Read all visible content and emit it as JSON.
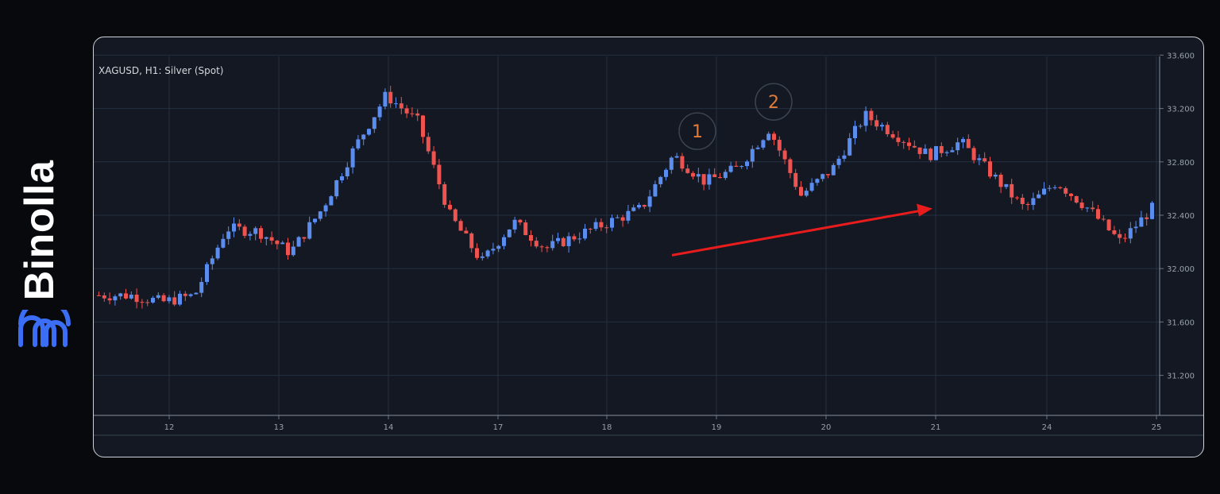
{
  "brand": {
    "name": "Binolla",
    "logo_icon": "binolla-logo-icon"
  },
  "chart_data": {
    "type": "candlestick",
    "title": "XAGUSD, H1: Silver (Spot)",
    "ylim": [
      30.9,
      33.65
    ],
    "y_ticks": [
      "33.600",
      "33.200",
      "32.800",
      "32.400",
      "32.000",
      "31.600",
      "31.200"
    ],
    "x_ticks": [
      "12",
      "13",
      "14",
      "17",
      "18",
      "19",
      "20",
      "21",
      "24",
      "25"
    ],
    "grid": true,
    "colors": {
      "up": "#5b8def",
      "down": "#ef5350",
      "grid": "#253041",
      "annotation": "#e07b39",
      "arrow": "#e81c1c",
      "background": "#131822"
    },
    "annotations": [
      {
        "label": "1",
        "date": "19",
        "price": 33.03
      },
      {
        "label": "2",
        "date": "19",
        "price": 33.25
      }
    ],
    "trend_arrow": {
      "from": {
        "date": "19",
        "price": 32.1
      },
      "to": {
        "date": "21",
        "price": 32.45
      }
    },
    "anchors": [
      {
        "date": "11",
        "price": 31.8
      },
      {
        "date": "12",
        "price": 31.8
      },
      {
        "date": "12",
        "price": 31.75
      },
      {
        "date": "13",
        "price": 31.8
      },
      {
        "date": "13",
        "price": 32.3
      },
      {
        "date": "13",
        "price": 32.28
      },
      {
        "date": "14",
        "price": 32.12
      },
      {
        "date": "14",
        "price": 32.45
      },
      {
        "date": "14",
        "price": 32.9
      },
      {
        "date": "14",
        "price": 33.3
      },
      {
        "date": "17",
        "price": 33.1
      },
      {
        "date": "17",
        "price": 32.4
      },
      {
        "date": "17",
        "price": 32.05
      },
      {
        "date": "17",
        "price": 32.35
      },
      {
        "date": "17",
        "price": 32.15
      },
      {
        "date": "18",
        "price": 32.25
      },
      {
        "date": "18",
        "price": 32.35
      },
      {
        "date": "18",
        "price": 32.45
      },
      {
        "date": "19",
        "price": 32.85
      },
      {
        "date": "19",
        "price": 32.65
      },
      {
        "date": "19",
        "price": 32.75
      },
      {
        "date": "19",
        "price": 33.05
      },
      {
        "date": "20",
        "price": 32.55
      },
      {
        "date": "20",
        "price": 32.75
      },
      {
        "date": "20",
        "price": 33.15
      },
      {
        "date": "21",
        "price": 33.0
      },
      {
        "date": "21",
        "price": 32.85
      },
      {
        "date": "21",
        "price": 32.95
      },
      {
        "date": "24",
        "price": 32.7
      },
      {
        "date": "24",
        "price": 32.45
      },
      {
        "date": "24",
        "price": 32.65
      },
      {
        "date": "24",
        "price": 32.45
      },
      {
        "date": "25",
        "price": 32.2
      },
      {
        "date": "25",
        "price": 32.45
      }
    ]
  }
}
